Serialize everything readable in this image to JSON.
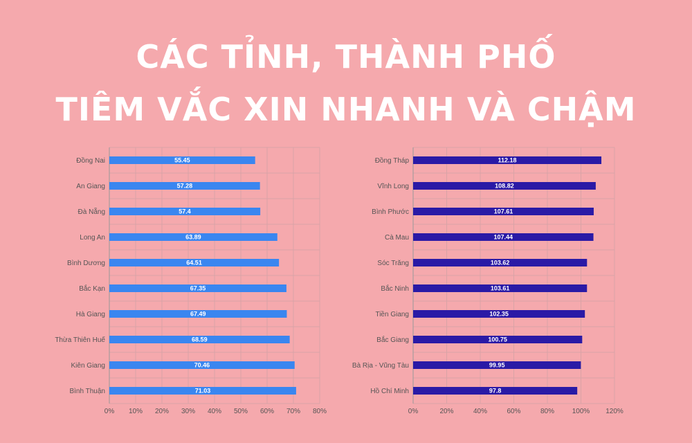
{
  "title": {
    "line1": "CÁC TỈNH, THÀNH PHỐ",
    "line2": "TIÊM VẮC XIN NHANH VÀ CHẬM"
  },
  "chart_data": [
    {
      "type": "bar",
      "orientation": "horizontal",
      "categories": [
        "Đồng Nai",
        "An Giang",
        "Đà Nẵng",
        "Long An",
        "Bình Dương",
        "Bắc Kạn",
        "Hà Giang",
        "Thừa Thiên Huế",
        "Kiên Giang",
        "Bình Thuận"
      ],
      "values": [
        55.45,
        57.28,
        57.4,
        63.89,
        64.51,
        67.35,
        67.49,
        68.59,
        70.46,
        71.03
      ],
      "xlim": [
        0,
        80
      ],
      "xticks": [
        "0%",
        "10%",
        "20%",
        "30%",
        "40%",
        "50%",
        "60%",
        "70%",
        "80%"
      ],
      "color": "#3a86f0",
      "grid": true
    },
    {
      "type": "bar",
      "orientation": "horizontal",
      "categories": [
        "Đồng Tháp",
        "Vĩnh Long",
        "Bình Phước",
        "Cà Mau",
        "Sóc Trăng",
        "Bắc Ninh",
        "Tiền Giang",
        "Bắc Giang",
        "Bà Rịa - Vũng Tàu",
        "Hồ Chí Minh"
      ],
      "values": [
        112.18,
        108.82,
        107.61,
        107.44,
        103.62,
        103.61,
        102.35,
        100.75,
        99.95,
        97.8
      ],
      "xlim": [
        0,
        120
      ],
      "xticks": [
        "0%",
        "20%",
        "40%",
        "60%",
        "80%",
        "100%",
        "120%"
      ],
      "color": "#2a1aa6",
      "grid": true
    }
  ]
}
